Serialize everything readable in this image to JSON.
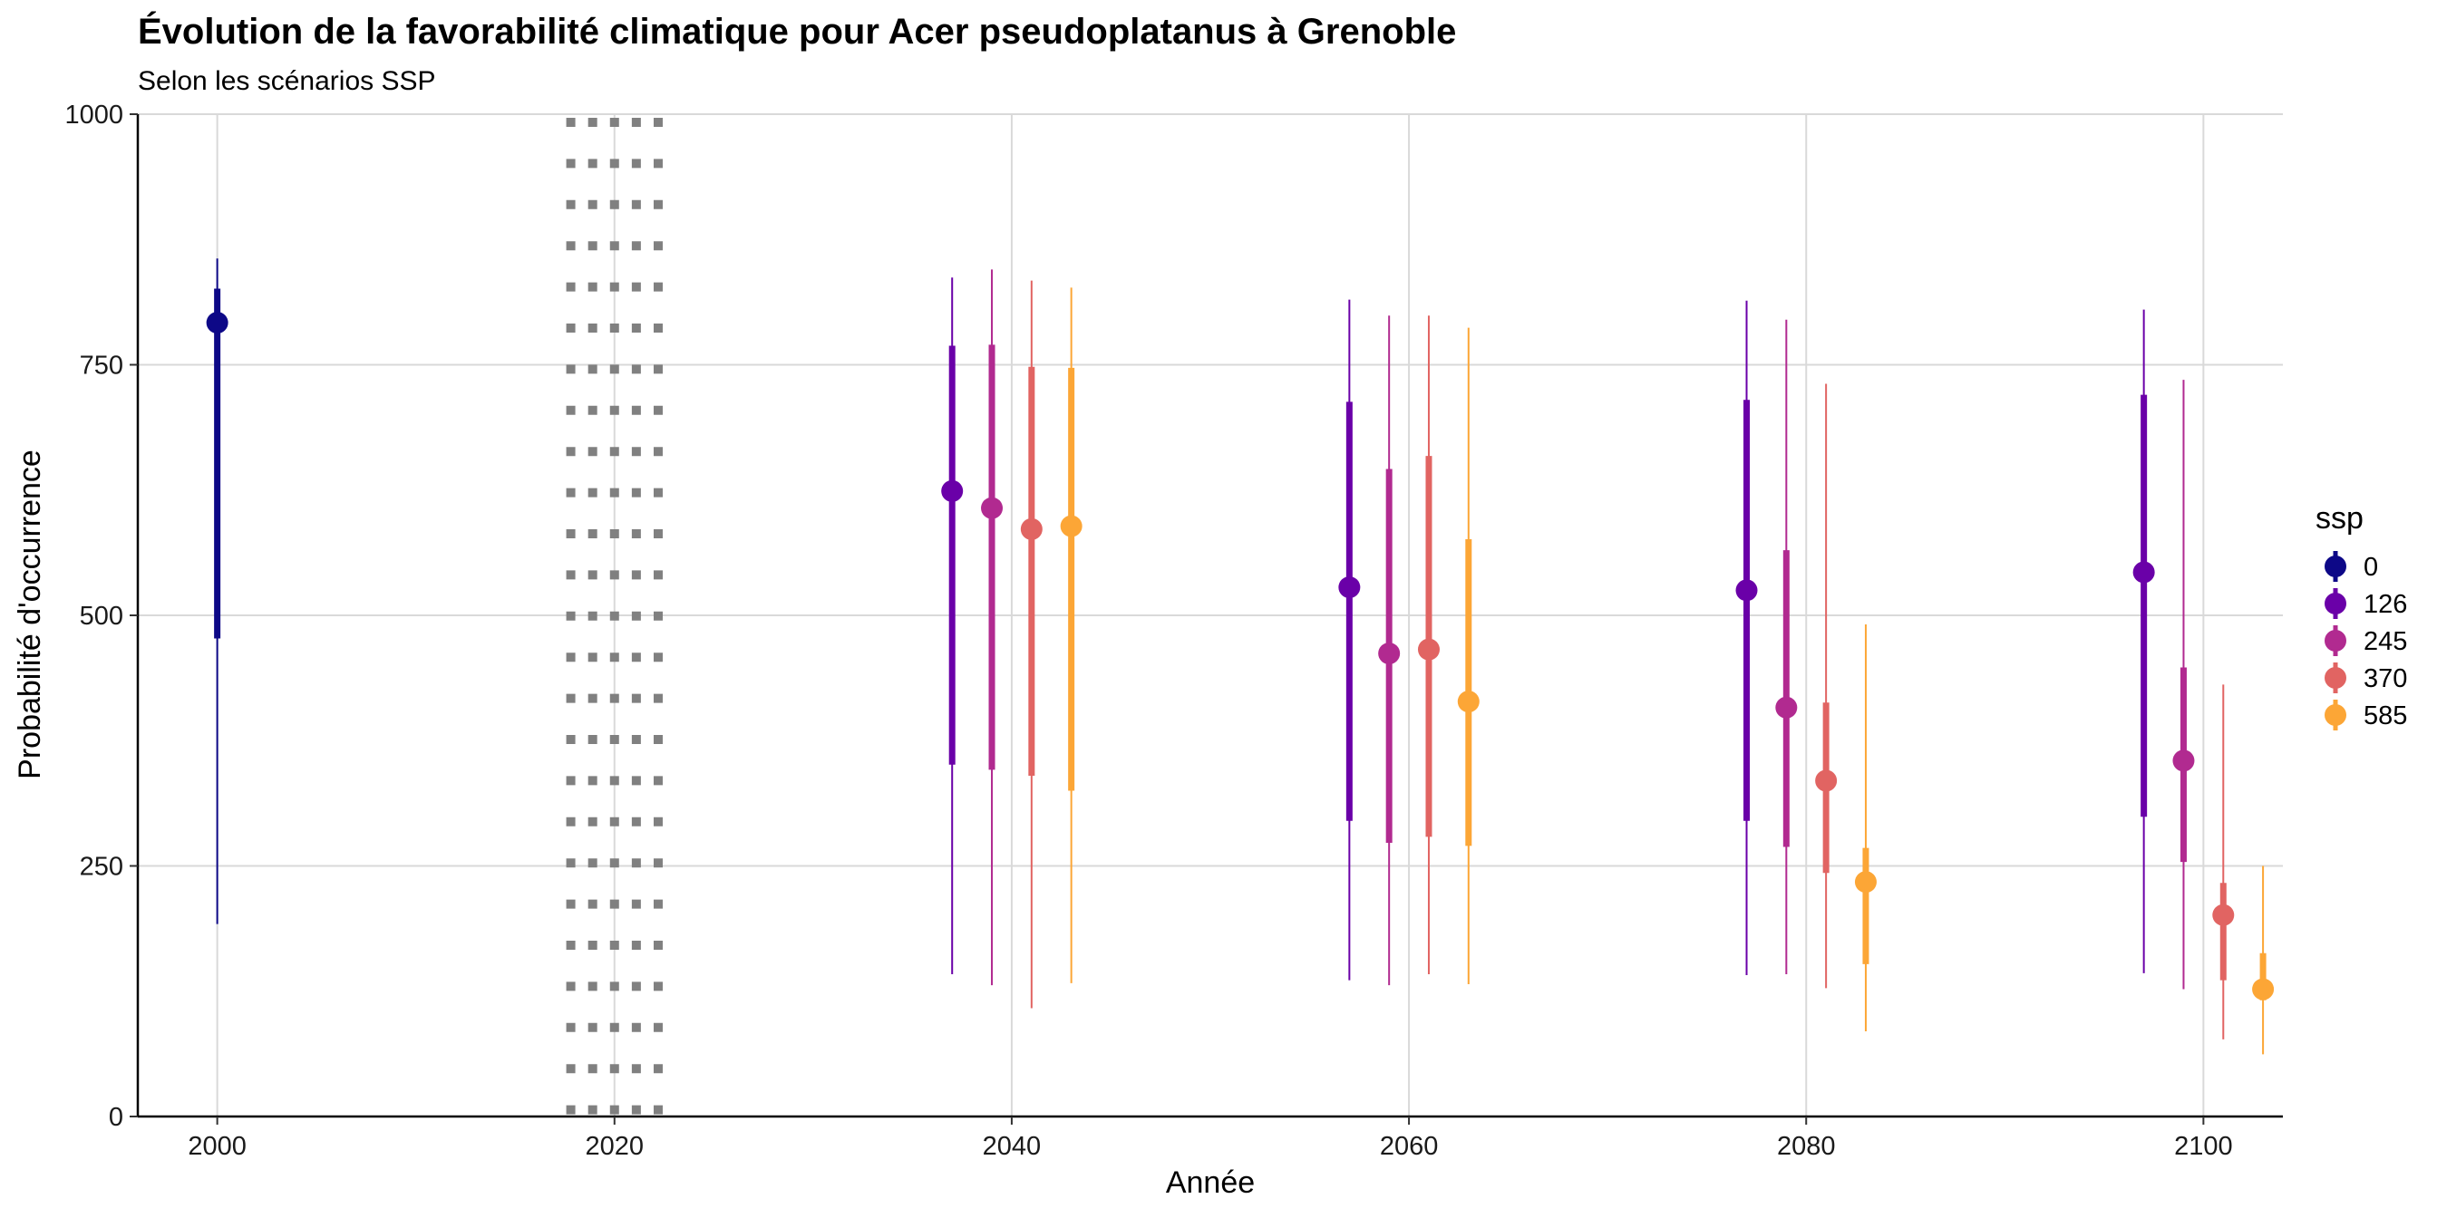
{
  "chart_data": {
    "type": "pointrange",
    "title": "Évolution de la favorabilité climatique pour Acer pseudoplatanus à Grenoble",
    "subtitle": "Selon les scénarios SSP",
    "xlabel": "Année",
    "ylabel": "Probabilité d'occurrence",
    "xlim": [
      1996,
      2104
    ],
    "ylim": [
      0,
      1000
    ],
    "x_ticks": [
      2000,
      2020,
      2040,
      2060,
      2080,
      2100
    ],
    "y_ticks": [
      0,
      250,
      500,
      750,
      1000
    ],
    "x_tick_labels": [
      "2000",
      "2020",
      "2040",
      "2060",
      "2080",
      "2100"
    ],
    "y_tick_labels": [
      "0",
      "250",
      "500",
      "750",
      "1000"
    ],
    "grid": true,
    "reference_band": {
      "x_center": 2020,
      "x_half_width": 2.2,
      "style": "dotted",
      "color": "#808080"
    },
    "legend": {
      "title": "ssp",
      "position": "right",
      "entries": [
        {
          "label": "0",
          "color": "#0D0887"
        },
        {
          "label": "126",
          "color": "#6A00A8"
        },
        {
          "label": "245",
          "color": "#B12A90"
        },
        {
          "label": "370",
          "color": "#E16462"
        },
        {
          "label": "585",
          "color": "#FCA636"
        }
      ]
    },
    "series": [
      {
        "name": "0",
        "color": "#0D0887",
        "points": [
          {
            "x": 2000,
            "y": 792,
            "q25": 477,
            "q75": 826,
            "min": 192,
            "max": 856
          }
        ]
      },
      {
        "name": "126",
        "color": "#6A00A8",
        "points": [
          {
            "x": 2037,
            "y": 624,
            "q25": 351,
            "q75": 769,
            "min": 142,
            "max": 837
          },
          {
            "x": 2057,
            "y": 528,
            "q25": 295,
            "q75": 713,
            "min": 136,
            "max": 815
          },
          {
            "x": 2077,
            "y": 525,
            "q25": 295,
            "q75": 715,
            "min": 141,
            "max": 814
          },
          {
            "x": 2097,
            "y": 543,
            "q25": 299,
            "q75": 720,
            "min": 143,
            "max": 805
          }
        ]
      },
      {
        "name": "245",
        "color": "#B12A90",
        "points": [
          {
            "x": 2039,
            "y": 607,
            "q25": 346,
            "q75": 770,
            "min": 131,
            "max": 845
          },
          {
            "x": 2059,
            "y": 462,
            "q25": 273,
            "q75": 646,
            "min": 131,
            "max": 799
          },
          {
            "x": 2079,
            "y": 408,
            "q25": 269,
            "q75": 565,
            "min": 142,
            "max": 795
          },
          {
            "x": 2099,
            "y": 355,
            "q25": 254,
            "q75": 448,
            "min": 127,
            "max": 735
          }
        ]
      },
      {
        "name": "370",
        "color": "#E16462",
        "points": [
          {
            "x": 2041,
            "y": 586,
            "q25": 340,
            "q75": 748,
            "min": 108,
            "max": 834
          },
          {
            "x": 2061,
            "y": 466,
            "q25": 279,
            "q75": 659,
            "min": 142,
            "max": 799
          },
          {
            "x": 2081,
            "y": 335,
            "q25": 243,
            "q75": 413,
            "min": 128,
            "max": 731
          },
          {
            "x": 2101,
            "y": 201,
            "q25": 136,
            "q75": 233,
            "min": 77,
            "max": 431
          }
        ]
      },
      {
        "name": "585",
        "color": "#FCA636",
        "points": [
          {
            "x": 2043,
            "y": 589,
            "q25": 325,
            "q75": 747,
            "min": 133,
            "max": 827
          },
          {
            "x": 2063,
            "y": 414,
            "q25": 270,
            "q75": 576,
            "min": 132,
            "max": 787
          },
          {
            "x": 2083,
            "y": 234,
            "q25": 152,
            "q75": 268,
            "min": 85,
            "max": 491
          },
          {
            "x": 2103,
            "y": 127,
            "q25": 116,
            "q75": 163,
            "min": 62,
            "max": 250
          }
        ]
      }
    ]
  }
}
